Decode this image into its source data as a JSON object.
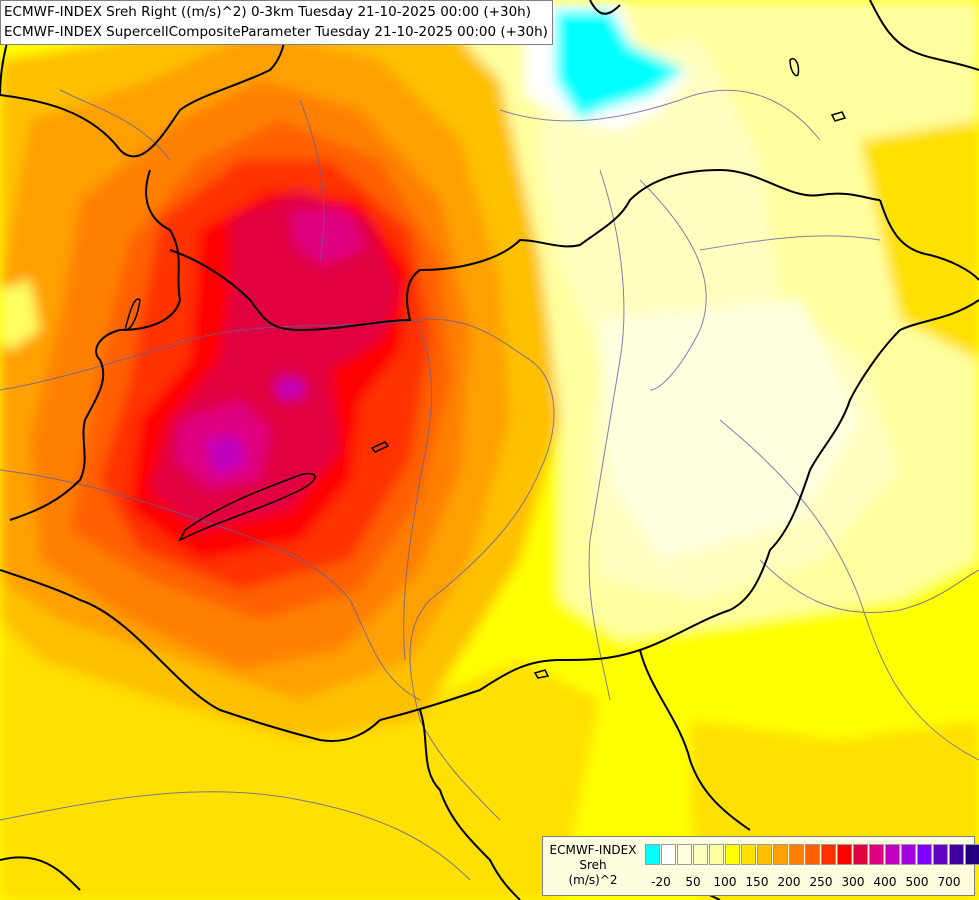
{
  "header": {
    "line1": "ECMWF-INDEX Sreh Right ((m/s)^2) 0-3km Tuesday 21-10-2025 00:00 (+30h)",
    "line2": "ECMWF-INDEX SupercellCompositeParameter Tuesday 21-10-2025 00:00 (+30h)"
  },
  "legend": {
    "title_lines": [
      "ECMWF-INDEX",
      "Sreh",
      "(m/s)^2"
    ],
    "colors": [
      "#00ffff",
      "#ffffff",
      "#ffffe0",
      "#ffffc0",
      "#ffffa0",
      "#ffff00",
      "#ffe000",
      "#ffc000",
      "#ffa000",
      "#ff8000",
      "#ff6000",
      "#ff3000",
      "#ff0000",
      "#e00040",
      "#e00080",
      "#c000c0",
      "#a000e0",
      "#8000ff",
      "#6000c0",
      "#4000a0",
      "#200080"
    ],
    "tick_labels": [
      "-20",
      "50",
      "100",
      "150",
      "200",
      "250",
      "300",
      "400",
      "500",
      "700"
    ]
  }
}
